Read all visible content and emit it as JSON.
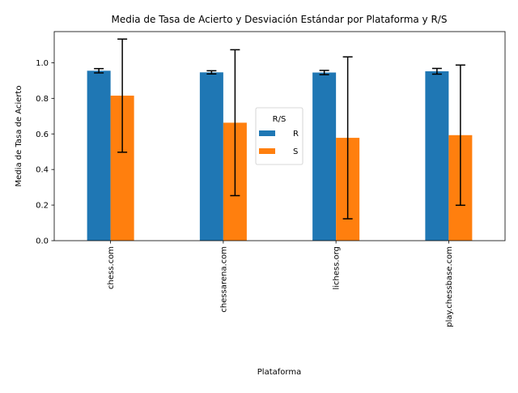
{
  "chart_data": {
    "type": "bar",
    "title": "Media de Tasa de Acierto y Desviación Estándar por Plataforma y R/S",
    "xlabel": "Plataforma",
    "ylabel": "Media de Tasa de Acierto",
    "categories": [
      "chess.com",
      "chessarena.com",
      "lichess.org",
      "play.chessbase.com"
    ],
    "series": [
      {
        "name": "R",
        "color": "#1f77b4",
        "values": [
          0.955,
          0.946,
          0.945,
          0.952
        ],
        "errors": [
          0.012,
          0.009,
          0.012,
          0.016
        ]
      },
      {
        "name": "S",
        "color": "#ff7f0e",
        "values": [
          0.815,
          0.663,
          0.578,
          0.593
        ],
        "errors": [
          0.318,
          0.41,
          0.455,
          0.394
        ]
      }
    ],
    "ylim": [
      0,
      1.175
    ],
    "yticks": [
      "0.0",
      "0.2",
      "0.4",
      "0.6",
      "0.8",
      "1.0"
    ],
    "legend": {
      "title": "R/S",
      "position": "center-right"
    },
    "grid": false
  }
}
